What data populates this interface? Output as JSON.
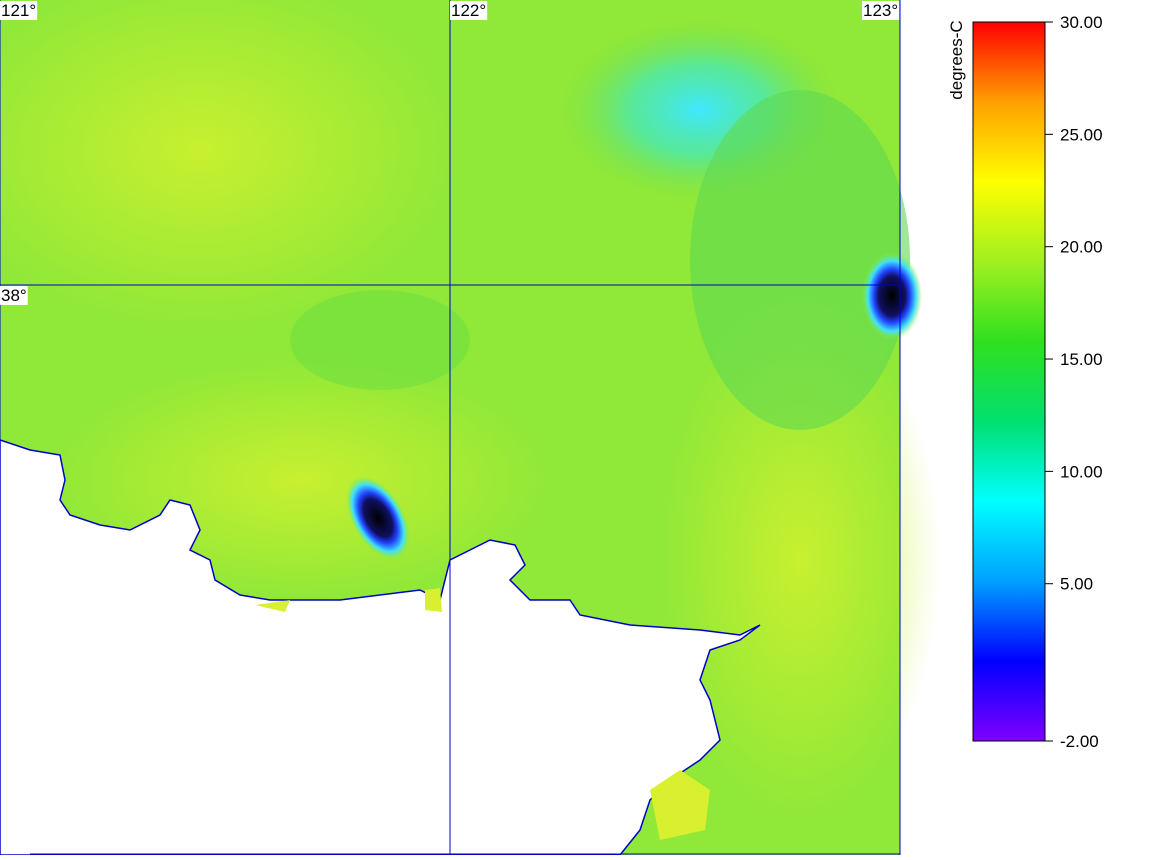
{
  "map": {
    "lon_ticks": [
      {
        "value": 121,
        "label": "121°"
      },
      {
        "value": 122,
        "label": "122°"
      },
      {
        "value": 123,
        "label": "123°"
      }
    ],
    "lat_ticks": [
      {
        "value": 38,
        "label": "38°"
      }
    ],
    "xlim": [
      121,
      123
    ],
    "ylim": [
      37.0,
      38.5
    ],
    "grid_color": "#0000c8"
  },
  "colorbar": {
    "label": "degrees-C",
    "ylim": [
      -2,
      30
    ],
    "ticks": [
      {
        "value": 30,
        "label": "30.00"
      },
      {
        "value": 25,
        "label": "25.00"
      },
      {
        "value": 20,
        "label": "20.00"
      },
      {
        "value": 15,
        "label": "15.00"
      },
      {
        "value": 10,
        "label": "10.00"
      },
      {
        "value": 5,
        "label": "5.00"
      },
      {
        "value": -2,
        "label": "-2.00"
      }
    ],
    "colors": [
      "#8000ff",
      "#0000ff",
      "#00a0ff",
      "#00ffff",
      "#00e070",
      "#30e020",
      "#a0f020",
      "#ffff00",
      "#ffa000",
      "#ff0000"
    ]
  }
}
